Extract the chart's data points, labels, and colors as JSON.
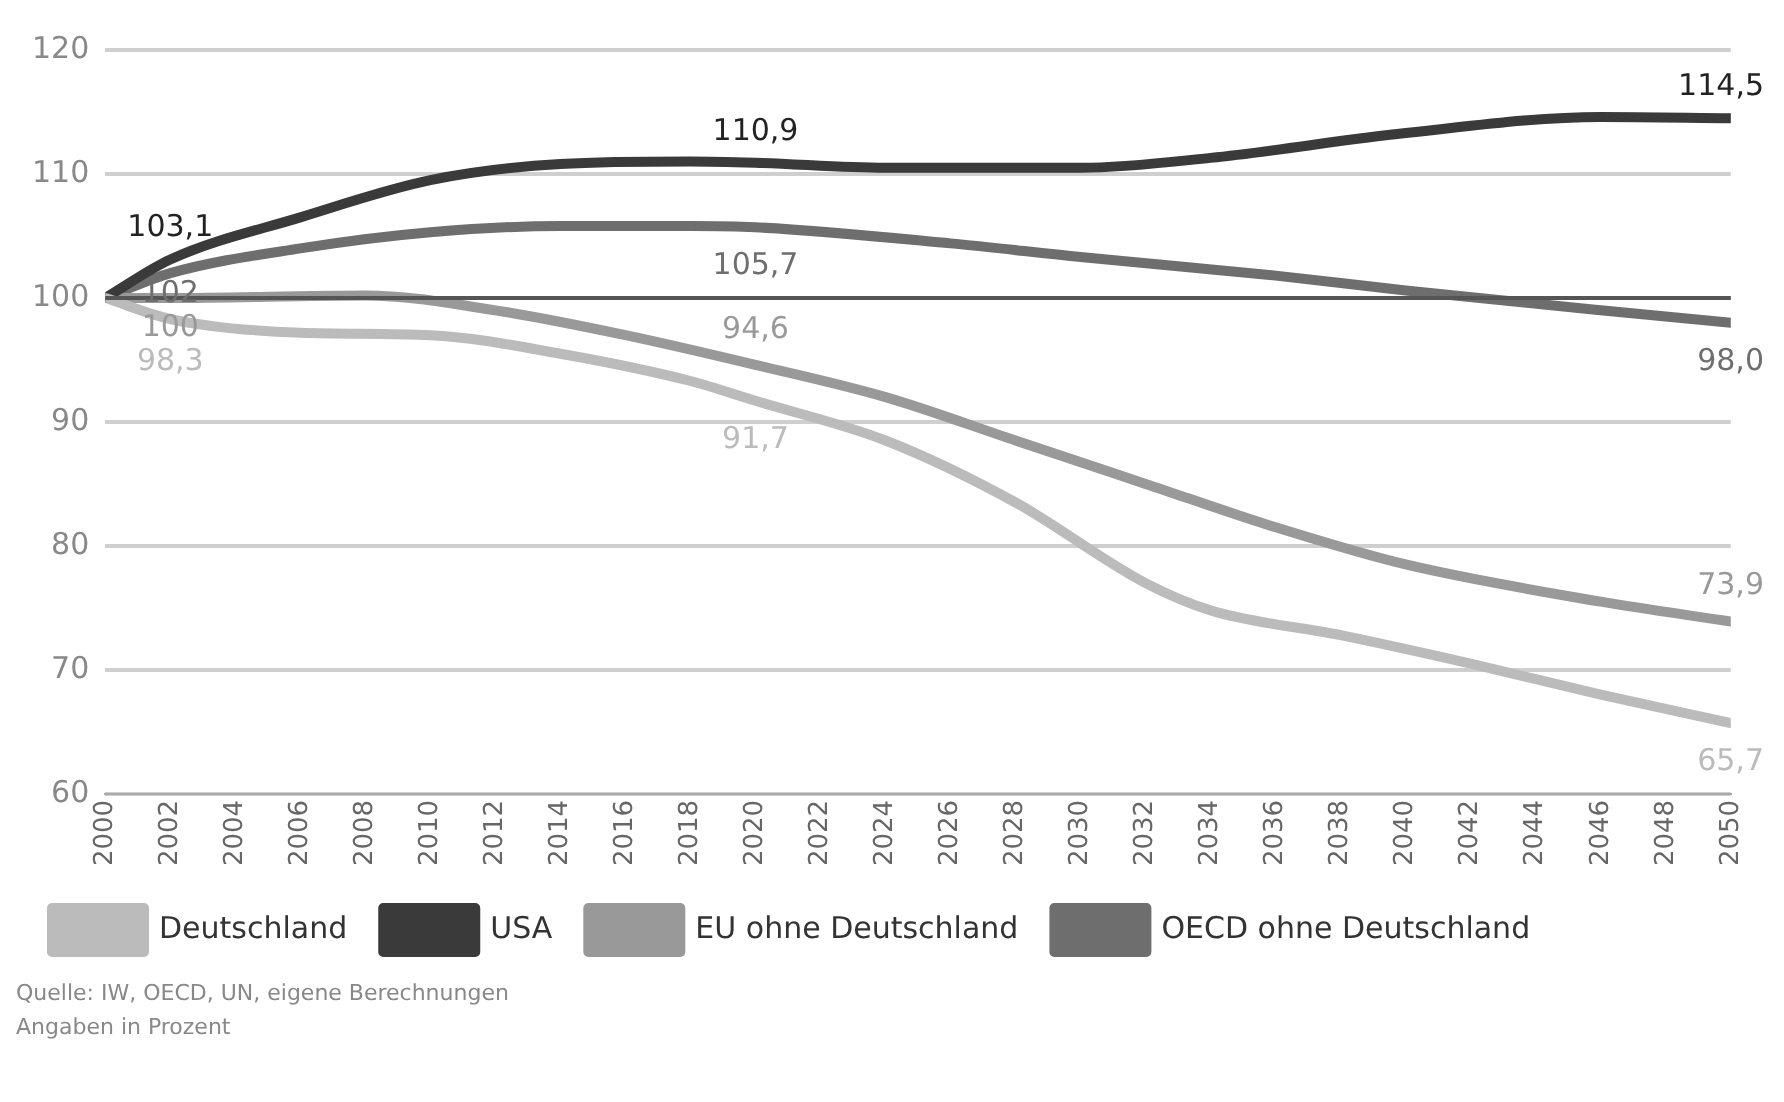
{
  "chart_data": {
    "type": "line",
    "xlim": [
      2000,
      2050
    ],
    "xticks": [
      2000,
      2002,
      2004,
      2006,
      2008,
      2010,
      2012,
      2014,
      2016,
      2018,
      2020,
      2022,
      2024,
      2026,
      2028,
      2030,
      2032,
      2034,
      2036,
      2038,
      2040,
      2042,
      2044,
      2046,
      2048,
      2050
    ],
    "ylim": [
      60,
      120
    ],
    "yticks": [
      60,
      70,
      80,
      90,
      100,
      110,
      120
    ],
    "grid": "y",
    "ref_lines": [
      {
        "axis": "y",
        "value": 100,
        "color": "#555555"
      }
    ],
    "legend": "bottom",
    "marker": "none",
    "line_style": "solid",
    "annotations": [
      "Quelle: IW, OECD, UN, eigene Berechnungen",
      "Angaben in Prozent"
    ],
    "series": [
      {
        "name": "Deutschland",
        "color": "#bbbbbb",
        "x": [
          2000,
          2002,
          2006,
          2010,
          2014,
          2018,
          2020,
          2024,
          2028,
          2032,
          2034,
          2038,
          2042,
          2046,
          2050
        ],
        "values": [
          100,
          98.3,
          97.2,
          97,
          95.5,
          93.3,
          91.7,
          88.5,
          83.5,
          77,
          74.8,
          72.8,
          70.5,
          68,
          65.7
        ],
        "value_labels": [
          null,
          "98,3",
          null,
          null,
          null,
          null,
          "91,7",
          null,
          null,
          null,
          null,
          null,
          null,
          null,
          "65,7"
        ]
      },
      {
        "name": "USA",
        "color": "#3a3a3a",
        "x": [
          2000,
          2002,
          2006,
          2010,
          2014,
          2018,
          2020,
          2024,
          2030,
          2034,
          2040,
          2046,
          2050
        ],
        "values": [
          100,
          103.1,
          106.5,
          109.5,
          110.8,
          111,
          110.9,
          110.5,
          110.5,
          111.3,
          113.3,
          114.6,
          114.5
        ],
        "value_labels": [
          null,
          "103,1",
          null,
          null,
          null,
          null,
          "110,9",
          null,
          null,
          null,
          null,
          null,
          "114,5"
        ]
      },
      {
        "name": "EU ohne Deutschland",
        "color": "#999999",
        "x": [
          2000,
          2002,
          2008,
          2012,
          2016,
          2020,
          2024,
          2028,
          2032,
          2036,
          2040,
          2046,
          2050
        ],
        "values": [
          100,
          100,
          100.2,
          99,
          97,
          94.6,
          92,
          88.5,
          85,
          81.5,
          78.5,
          75.5,
          73.9
        ],
        "value_labels": [
          null,
          "100",
          null,
          null,
          null,
          "94,6",
          null,
          null,
          null,
          null,
          null,
          null,
          "73,9"
        ]
      },
      {
        "name": "OECD ohne Deutschland",
        "color": "#6e6e6e",
        "x": [
          2000,
          2002,
          2006,
          2010,
          2014,
          2018,
          2020,
          2026,
          2030,
          2036,
          2040,
          2046,
          2050
        ],
        "values": [
          100,
          102,
          104,
          105.3,
          105.8,
          105.8,
          105.7,
          104.4,
          103.3,
          101.8,
          100.6,
          99,
          98.0
        ],
        "value_labels": [
          null,
          "102",
          null,
          null,
          null,
          null,
          "105,7",
          null,
          null,
          null,
          null,
          null,
          "98,0"
        ]
      }
    ]
  }
}
